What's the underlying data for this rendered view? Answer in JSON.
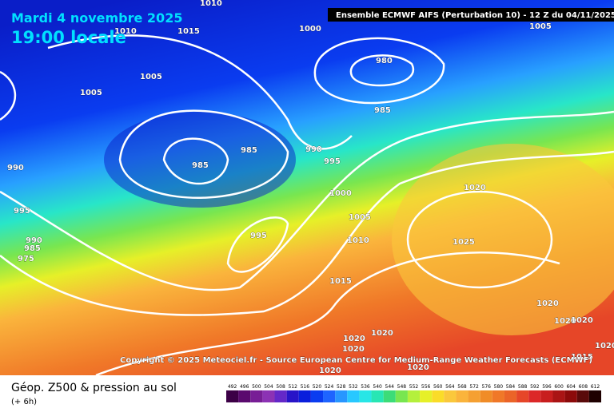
{
  "header": {
    "date": "Mardi 4 novembre 2025",
    "local_time": "19:00 locale",
    "run": "Ensemble ECMWF AIFS  (Perturbation 10)  - 12 Z du 04/11/2025"
  },
  "isobar_labels": [
    "1010",
    "1010",
    "1015",
    "1000",
    "1005",
    "980",
    "1005",
    "1005",
    "985",
    "985",
    "990",
    "990",
    "985",
    "995",
    "1000",
    "1020",
    "995",
    "1005",
    "1010",
    "1025",
    "995",
    "990",
    "985",
    "975",
    "1015",
    "1020",
    "1020",
    "1020",
    "1020",
    "1020",
    "1020",
    "1015",
    "1020",
    "1020",
    "1020"
  ],
  "copyright": "Copyright © 2025 Meteociel.fr - Source European Centre for Medium-Range Weather Forecasts (ECMWF)",
  "legend": {
    "title": "Géop. Z500 & pression au sol",
    "step": "(+ 6h)",
    "labels": [
      492,
      496,
      500,
      504,
      508,
      512,
      516,
      520,
      524,
      528,
      532,
      536,
      540,
      544,
      548,
      552,
      556,
      560,
      564,
      568,
      572,
      576,
      580,
      584,
      588,
      592,
      596,
      600,
      604,
      608,
      612
    ],
    "colors": [
      "#3c0046",
      "#5a0a6e",
      "#781e96",
      "#8c32b4",
      "#6428c8",
      "#2814c8",
      "#0a1edc",
      "#0a3cf0",
      "#1e64ff",
      "#2896ff",
      "#28c8ff",
      "#28e6e6",
      "#28e6b4",
      "#3cdc78",
      "#78e650",
      "#b4f03c",
      "#e6f028",
      "#fadc28",
      "#fac83c",
      "#fab43c",
      "#f5a032",
      "#f08c28",
      "#f07828",
      "#eb6428",
      "#e64628",
      "#dc2828",
      "#c81e1e",
      "#aa1414",
      "#8c0a0a",
      "#5a0a0a",
      "#1e0000"
    ]
  }
}
